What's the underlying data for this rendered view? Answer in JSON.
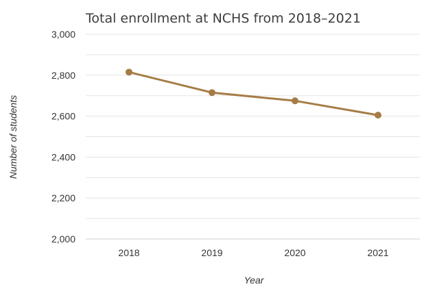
{
  "chart_data": {
    "type": "line",
    "title": "Total enrollment at NCHS from 2018–2021",
    "xlabel": "Year",
    "ylabel": "Number of students",
    "categories": [
      "2018",
      "2019",
      "2020",
      "2021"
    ],
    "series": [
      {
        "values": [
          2815,
          2715,
          2675,
          2605
        ],
        "color": "#a67c45"
      }
    ],
    "ylim": [
      2000,
      3000
    ],
    "yticks": [
      2000,
      2200,
      2400,
      2600,
      2800,
      3000
    ],
    "ytick_labels": [
      "2,000",
      "2,200",
      "2,400",
      "2,600",
      "2,800",
      "3,000"
    ],
    "grid": true,
    "legend": "none"
  }
}
